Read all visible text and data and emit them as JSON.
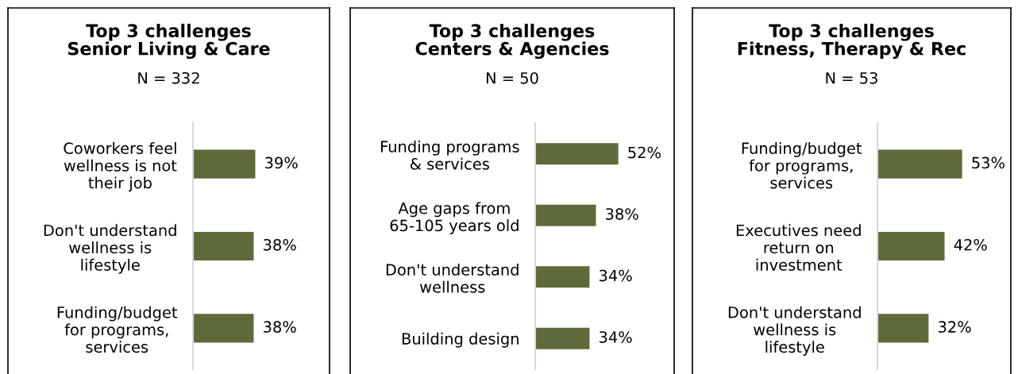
{
  "chart_data": [
    {
      "type": "bar",
      "orientation": "horizontal",
      "title": "Top 3 challenges\nSenior Living & Care",
      "subtitle": "N = 332",
      "categories": [
        "Coworkers feel\nwellness is not\ntheir job",
        "Don't understand\nwellness is\nlifestyle",
        "Funding/budget\nfor programs,\nservices"
      ],
      "values": [
        39,
        38,
        38
      ],
      "value_labels": [
        "39%",
        "38%",
        "38%"
      ],
      "color": "#5f6a3a"
    },
    {
      "type": "bar",
      "orientation": "horizontal",
      "title": "Top 3 challenges\nCenters & Agencies",
      "subtitle": "N = 50",
      "categories": [
        "Funding programs\n& services",
        "Age gaps from\n65-105 years old",
        "Don't understand\nwellness",
        "Building design"
      ],
      "values": [
        52,
        38,
        34,
        34
      ],
      "value_labels": [
        "52%",
        "38%",
        "34%",
        "34%"
      ],
      "color": "#5f6a3a"
    },
    {
      "type": "bar",
      "orientation": "horizontal",
      "title": "Top 3 challenges\nFitness, Therapy & Rec",
      "subtitle": "N = 53",
      "categories": [
        "Funding/budget\nfor programs,\nservices",
        "Executives need\nreturn on\ninvestment",
        "Don't understand\nwellness is\nlifestyle"
      ],
      "values": [
        53,
        42,
        32
      ],
      "value_labels": [
        "53%",
        "42%",
        "32%"
      ],
      "color": "#5f6a3a"
    }
  ]
}
